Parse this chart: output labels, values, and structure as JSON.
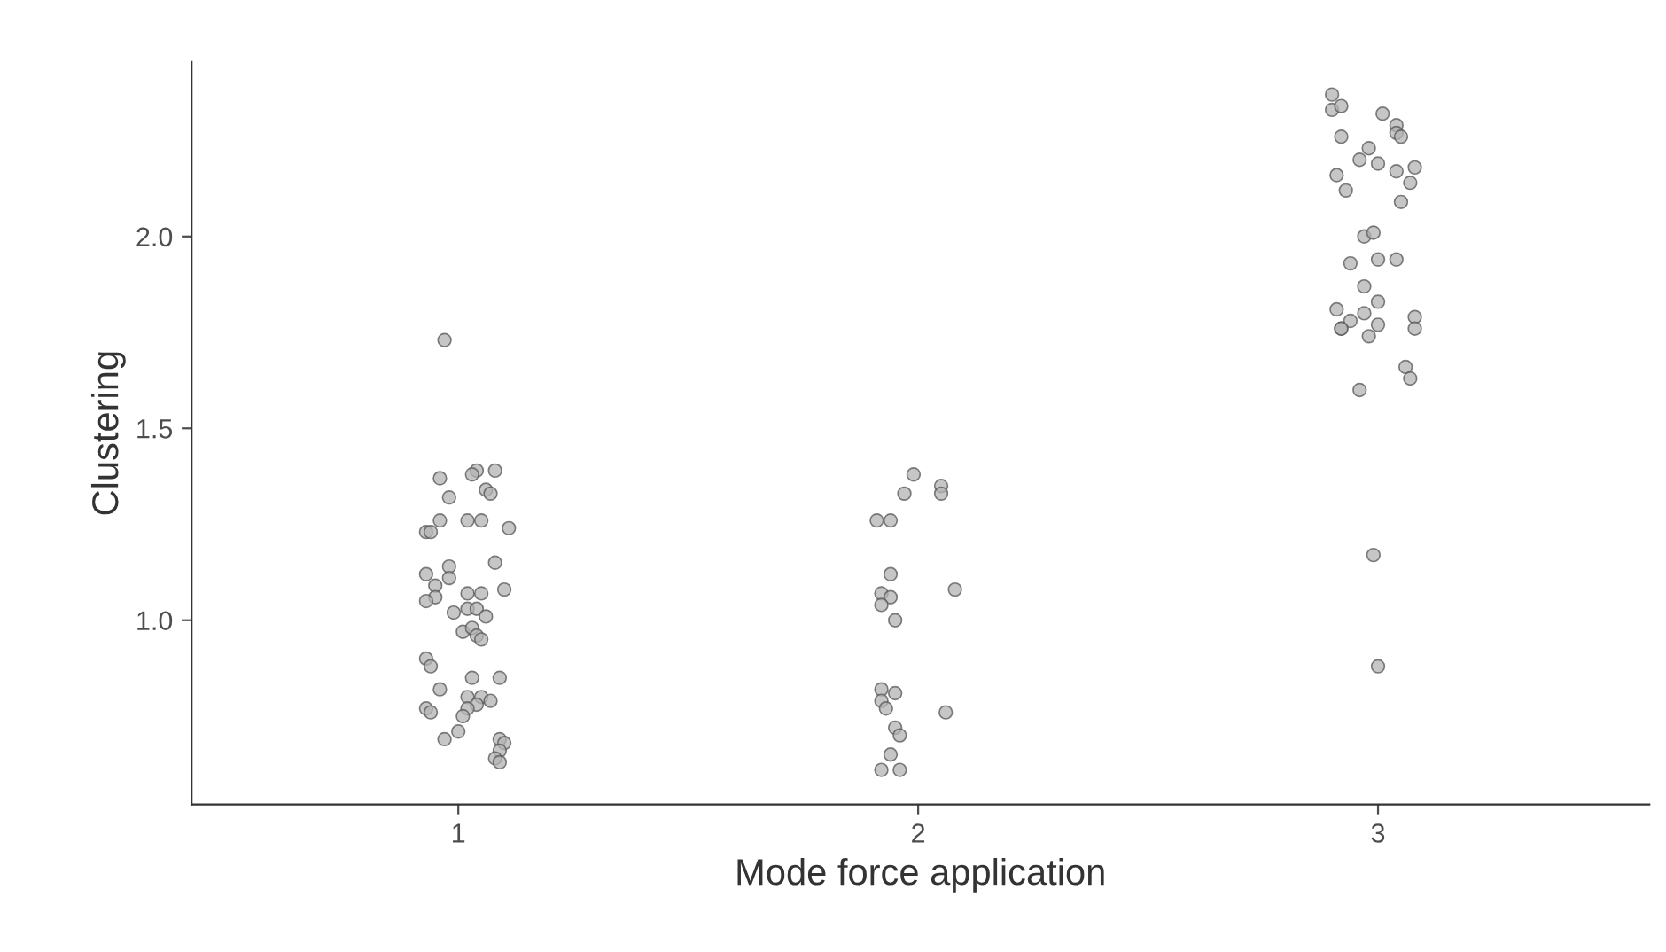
{
  "chart_data": {
    "type": "scatter",
    "xlabel": "Mode force application",
    "ylabel": "Clustering",
    "xlim": [
      0.42,
      3.59
    ],
    "ylim": [
      0.52,
      2.455
    ],
    "xticks": [
      1,
      2,
      3
    ],
    "yticks": [
      {
        "value": 1,
        "label": "1.0"
      },
      {
        "value": 1.5,
        "label": "1.5"
      },
      {
        "value": 2,
        "label": "2.0"
      }
    ],
    "grid": false,
    "legend": false,
    "marker": "circle",
    "series": [
      {
        "color": "#b3b3b3",
        "x": [
          0.97,
          0.96,
          1.04,
          1.03,
          1.08,
          0.98,
          1.06,
          1.07,
          0.96,
          1.02,
          1.05,
          0.93,
          0.94,
          1.11,
          0.98,
          1.08,
          0.93,
          0.98,
          0.95,
          0.95,
          0.93,
          1.1,
          1.02,
          1.05,
          0.99,
          1.02,
          1.04,
          1.06,
          1.01,
          1.03,
          1.04,
          1.05,
          0.93,
          0.94,
          1.03,
          1.09,
          0.96,
          1.02,
          1.05,
          1.07,
          1.04,
          1.02,
          0.93,
          0.94,
          1.01,
          1.0,
          0.97,
          1.09,
          1.1,
          1.09,
          1.08,
          1.09,
          1.99,
          2.05,
          1.97,
          2.05,
          1.91,
          1.94,
          1.94,
          2.08,
          1.92,
          1.94,
          1.92,
          1.95,
          1.92,
          1.95,
          1.92,
          1.93,
          2.06,
          1.95,
          1.96,
          1.94,
          1.92,
          1.96,
          2.9,
          2.9,
          2.92,
          3.01,
          3.04,
          3.04,
          3.05,
          2.92,
          2.98,
          2.96,
          3.0,
          3.04,
          3.08,
          2.91,
          3.07,
          2.93,
          3.05,
          2.97,
          2.99,
          2.94,
          3.0,
          3.04,
          2.97,
          3.0,
          2.91,
          2.97,
          2.94,
          2.92,
          2.92,
          3.0,
          3.08,
          3.08,
          2.98,
          3.06,
          3.07,
          2.96,
          2.99,
          3.0
        ],
        "values": [
          1.73,
          1.37,
          1.39,
          1.38,
          1.39,
          1.32,
          1.34,
          1.33,
          1.26,
          1.26,
          1.26,
          1.23,
          1.23,
          1.24,
          1.14,
          1.15,
          1.12,
          1.11,
          1.09,
          1.06,
          1.05,
          1.08,
          1.07,
          1.07,
          1.02,
          1.03,
          1.03,
          1.01,
          0.97,
          0.98,
          0.96,
          0.95,
          0.9,
          0.88,
          0.85,
          0.85,
          0.82,
          0.8,
          0.8,
          0.79,
          0.78,
          0.77,
          0.77,
          0.76,
          0.75,
          0.71,
          0.69,
          0.69,
          0.68,
          0.66,
          0.64,
          0.63,
          1.38,
          1.35,
          1.33,
          1.33,
          1.26,
          1.26,
          1.12,
          1.08,
          1.07,
          1.06,
          1.04,
          1.0,
          0.82,
          0.81,
          0.79,
          0.77,
          0.76,
          0.72,
          0.7,
          0.65,
          0.61,
          0.61,
          2.37,
          2.33,
          2.34,
          2.32,
          2.29,
          2.27,
          2.26,
          2.26,
          2.23,
          2.2,
          2.19,
          2.17,
          2.18,
          2.16,
          2.14,
          2.12,
          2.09,
          2.0,
          2.01,
          1.93,
          1.94,
          1.94,
          1.87,
          1.83,
          1.81,
          1.8,
          1.78,
          1.76,
          1.76,
          1.77,
          1.79,
          1.76,
          1.74,
          1.66,
          1.63,
          1.6,
          1.17,
          0.88
        ]
      }
    ]
  }
}
